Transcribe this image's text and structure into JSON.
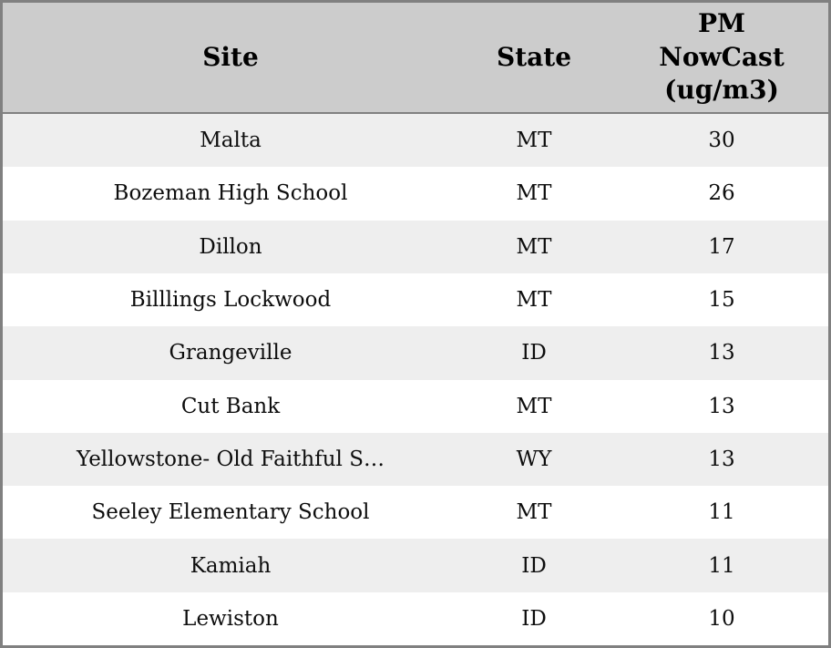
{
  "header": {
    "site": "Site",
    "state": "State",
    "pm": "PM\nNowCast\n(ug/m3)"
  },
  "chart_data": {
    "type": "table",
    "columns": [
      "Site",
      "State",
      "PM NowCast (ug/m3)"
    ],
    "rows": [
      [
        "Malta",
        "MT",
        30
      ],
      [
        "Bozeman High School",
        "MT",
        26
      ],
      [
        "Dillon",
        "MT",
        17
      ],
      [
        "Billlings Lockwood",
        "MT",
        15
      ],
      [
        "Grangeville",
        "ID",
        13
      ],
      [
        "Cut Bank",
        "MT",
        13
      ],
      [
        "Yellowstone- Old Faithful S…",
        "WY",
        13
      ],
      [
        "Seeley Elementary School",
        "MT",
        11
      ],
      [
        "Kamiah",
        "ID",
        11
      ],
      [
        "Lewiston",
        "ID",
        10
      ]
    ]
  },
  "colors": {
    "header_bg": "#cccccc",
    "row_alt_bg": "#eeeeee",
    "row_bg": "#ffffff",
    "border": "#808080",
    "text": "#000000"
  }
}
